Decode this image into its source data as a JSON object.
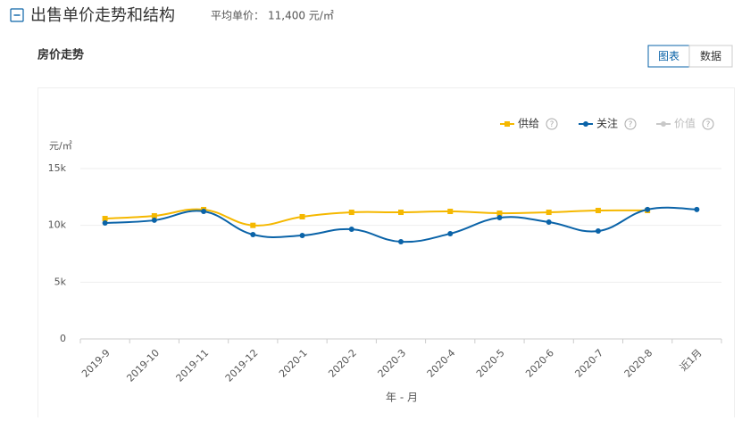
{
  "header": {
    "title": "出售单价走势和结构",
    "avg_label": "平均单价：",
    "avg_value": "11,400 元/㎡"
  },
  "section": {
    "title": "房价走势",
    "buttons": [
      "图表",
      "数据"
    ]
  },
  "chart_data": {
    "type": "line",
    "y_unit": "元/㎡",
    "x_label": "年 - 月",
    "categories": [
      "2019-9",
      "2019-10",
      "2019-11",
      "2019-12",
      "2020-1",
      "2020-2",
      "2020-3",
      "2020-4",
      "2020-5",
      "2020-6",
      "2020-7",
      "2020-8",
      "近1月"
    ],
    "series": [
      {
        "name": "供给",
        "color": "#f5b800",
        "marker": "square",
        "values": [
          10600,
          10840,
          11390,
          10000,
          10760,
          11150,
          11150,
          11230,
          11070,
          11150,
          11310,
          11310,
          null
        ]
      },
      {
        "name": "关注",
        "color": "#0a63a8",
        "marker": "circle",
        "values": [
          10210,
          10450,
          11230,
          9190,
          9110,
          9660,
          8560,
          9270,
          10680,
          10290,
          9500,
          11400,
          11400
        ]
      },
      {
        "name": "价值",
        "color": "#c8c8c8",
        "marker": "circle",
        "values": [
          null,
          null,
          null,
          null,
          null,
          null,
          null,
          null,
          null,
          null,
          null,
          null,
          null
        ]
      }
    ],
    "ylim": [
      0,
      15000
    ],
    "yticks": [
      {
        "value": 0,
        "label": "0"
      },
      {
        "value": 5000,
        "label": "5k"
      },
      {
        "value": 10000,
        "label": "10k"
      },
      {
        "value": 15000,
        "label": "15k"
      }
    ],
    "grid": true
  }
}
